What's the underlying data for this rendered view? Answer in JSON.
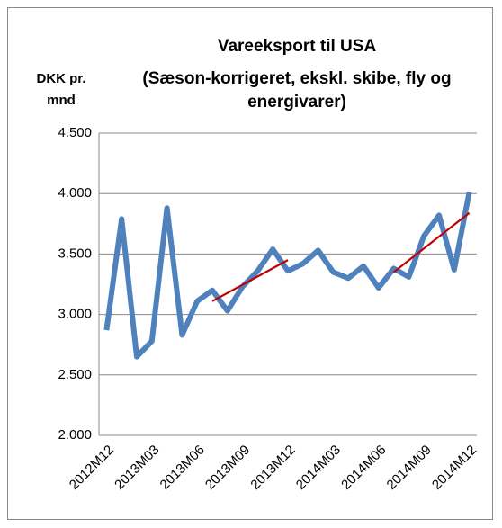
{
  "chart_data": {
    "type": "line",
    "title": [
      "Vareeksport til USA",
      "(Sæson-korrigeret, ekskl. skibe, fly og",
      "energivarer)"
    ],
    "y_label": [
      "DKK pr.",
      "mnd"
    ],
    "categories": [
      "2012M12",
      null,
      null,
      "2013M03",
      null,
      null,
      "2013M06",
      null,
      null,
      "2013M09",
      null,
      null,
      "2013M12",
      null,
      null,
      "2014M03",
      null,
      null,
      "2014M06",
      null,
      null,
      "2014M09",
      null,
      null,
      "2014M12"
    ],
    "series": [
      {
        "color": "#4f81bd",
        "values": [
          2870,
          3790,
          2650,
          2780,
          3880,
          2830,
          3110,
          3200,
          3030,
          3230,
          3360,
          3540,
          3360,
          3420,
          3530,
          3350,
          3300,
          3400,
          3220,
          3380,
          3310,
          3650,
          3820,
          3370,
          4010
        ]
      },
      {
        "color": "#c00000",
        "values": [
          null,
          null,
          null,
          null,
          null,
          null,
          null,
          3110,
          3178,
          3246,
          3314,
          3382,
          3450,
          null,
          null,
          null,
          null,
          null,
          null,
          null,
          null,
          null,
          null,
          null,
          null
        ]
      },
      {
        "color": "#c00000",
        "values": [
          null,
          null,
          null,
          null,
          null,
          null,
          null,
          null,
          null,
          null,
          null,
          null,
          null,
          null,
          null,
          null,
          null,
          null,
          null,
          3350,
          3448,
          3546,
          3644,
          3742,
          3840
        ]
      }
    ],
    "ylim": [
      2000,
      4500
    ],
    "yticks": [
      {
        "value": 2000,
        "label": "2.000"
      },
      {
        "value": 2500,
        "label": "2.500"
      },
      {
        "value": 3000,
        "label": "3.000"
      },
      {
        "value": 3500,
        "label": "3.500"
      },
      {
        "value": 4000,
        "label": "4.000"
      },
      {
        "value": 4500,
        "label": "4.500"
      }
    ],
    "grid": true
  }
}
